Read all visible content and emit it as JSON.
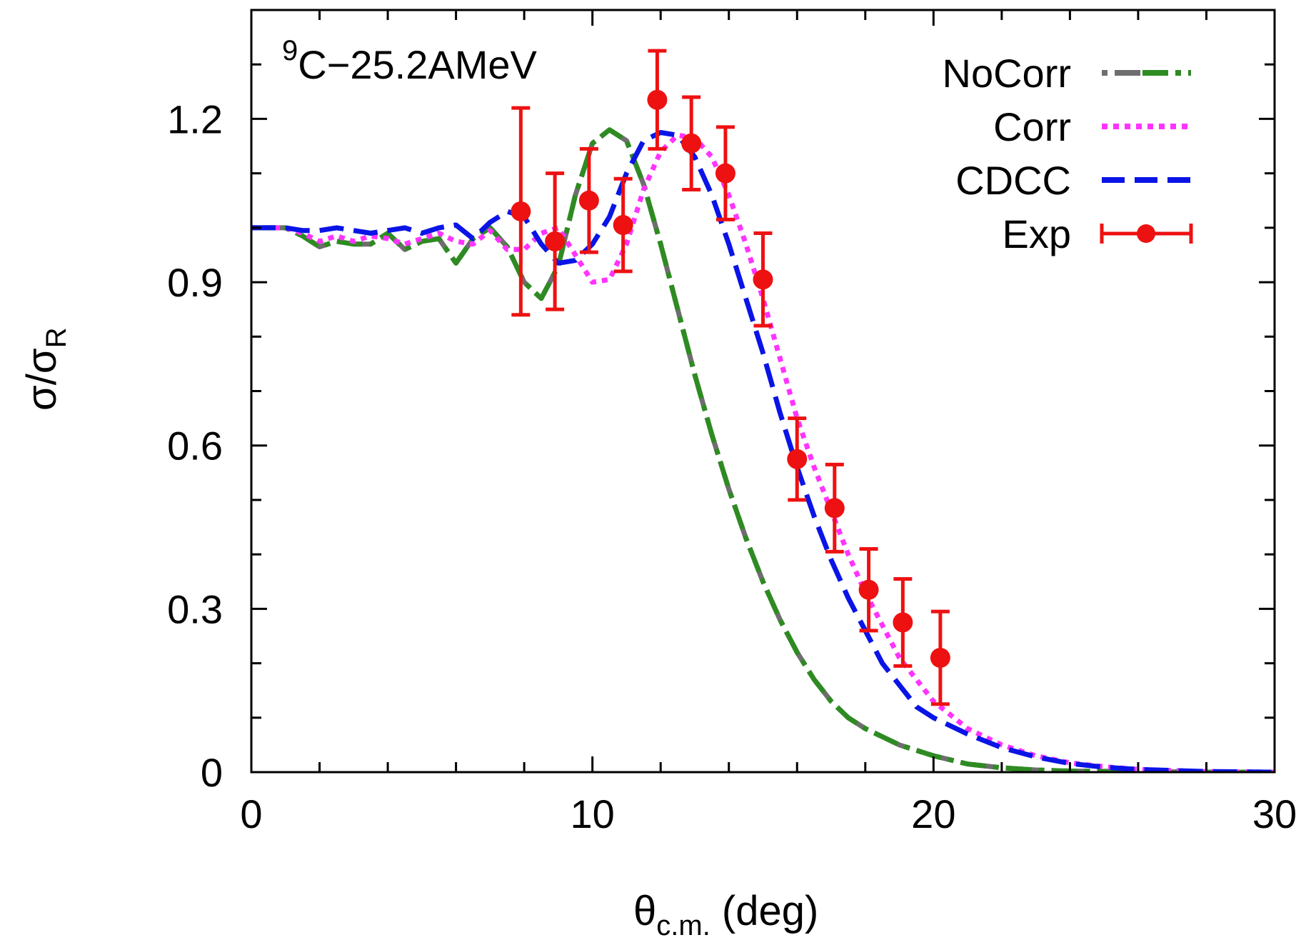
{
  "chart_data": {
    "type": "line",
    "title": {
      "sup": "9",
      "text": "C−25.2AMeV"
    },
    "xlabel": {
      "main": "θ",
      "sub": "c.m.",
      "rest": " (deg)"
    },
    "ylabel": {
      "main": "σ/σ",
      "sub": "R"
    },
    "xlim": [
      0,
      30
    ],
    "ylim": [
      0,
      1.4
    ],
    "x_ticks": [
      0,
      10,
      20,
      30
    ],
    "x_tick_labels": [
      "0",
      "10",
      "20",
      "30"
    ],
    "y_ticks": [
      0,
      0.3,
      0.6,
      0.9,
      1.2
    ],
    "y_tick_labels": [
      "0",
      "0.3",
      "0.6",
      "0.9",
      "1.2"
    ],
    "grid": false,
    "legend_position": "top-right",
    "series": [
      {
        "name": "NoCorr",
        "style": "dash-dot",
        "colors": [
          "#6e6e6e",
          "#2e8b22"
        ],
        "x": [
          0,
          1,
          1.5,
          2,
          2.5,
          3,
          3.5,
          4,
          4.5,
          5,
          5.5,
          6,
          6.5,
          7,
          7.5,
          8,
          8.5,
          9,
          9.5,
          10,
          10.5,
          11,
          11.5,
          12,
          12.5,
          13,
          13.5,
          14,
          14.5,
          15,
          15.5,
          16,
          16.5,
          17,
          17.5,
          18,
          19,
          20,
          21,
          22,
          23,
          24,
          26,
          28,
          30
        ],
        "y": [
          1.0,
          1.0,
          0.985,
          0.965,
          0.975,
          0.97,
          0.97,
          0.99,
          0.96,
          0.975,
          0.98,
          0.935,
          0.98,
          1.0,
          0.965,
          0.9,
          0.87,
          0.93,
          1.06,
          1.155,
          1.18,
          1.16,
          1.08,
          0.97,
          0.85,
          0.73,
          0.62,
          0.52,
          0.43,
          0.35,
          0.28,
          0.22,
          0.17,
          0.13,
          0.1,
          0.08,
          0.05,
          0.03,
          0.015,
          0.008,
          0.004,
          0.002,
          0.001,
          0.0,
          0.0
        ]
      },
      {
        "name": "Corr",
        "style": "dotted",
        "colors": [
          "#ff33ff"
        ],
        "x": [
          0,
          1,
          1.5,
          2,
          2.5,
          3,
          3.5,
          4,
          4.5,
          5,
          5.5,
          6,
          6.5,
          7,
          7.5,
          8,
          8.5,
          9,
          9.5,
          10,
          10.5,
          11,
          11.5,
          12,
          12.5,
          13,
          13.5,
          14,
          14.5,
          15,
          15.5,
          16,
          16.5,
          17,
          17.5,
          18,
          18.5,
          19,
          19.5,
          20,
          21,
          22,
          23,
          24,
          25,
          26,
          28,
          30
        ],
        "y": [
          1.0,
          1.0,
          0.99,
          0.975,
          0.985,
          0.975,
          0.985,
          0.98,
          0.97,
          0.98,
          0.99,
          0.975,
          0.97,
          0.995,
          0.96,
          0.96,
          0.99,
          1.0,
          0.95,
          0.9,
          0.905,
          0.97,
          1.07,
          1.14,
          1.17,
          1.165,
          1.13,
          1.06,
          0.97,
          0.87,
          0.76,
          0.65,
          0.56,
          0.48,
          0.4,
          0.33,
          0.27,
          0.21,
          0.17,
          0.13,
          0.08,
          0.05,
          0.03,
          0.017,
          0.01,
          0.005,
          0.001,
          0.0
        ]
      },
      {
        "name": "CDCC",
        "style": "dashed",
        "colors": [
          "#0a14e6"
        ],
        "x": [
          0,
          1,
          1.5,
          2,
          2.5,
          3,
          3.5,
          4,
          4.5,
          5,
          5.5,
          6,
          6.5,
          7,
          7.5,
          8,
          8.5,
          9,
          9.5,
          10,
          10.5,
          11,
          11.5,
          12,
          12.5,
          13,
          13.5,
          14,
          14.5,
          15,
          15.5,
          16,
          16.5,
          17,
          17.5,
          18,
          18.5,
          19,
          19.5,
          20,
          21,
          22,
          23,
          24,
          25,
          26,
          28,
          30
        ],
        "y": [
          1.0,
          1.0,
          0.995,
          0.995,
          1.0,
          0.995,
          0.99,
          0.995,
          1.0,
          0.99,
          1.0,
          1.005,
          0.98,
          1.01,
          1.03,
          1.02,
          0.97,
          0.935,
          0.94,
          0.97,
          1.02,
          1.1,
          1.16,
          1.175,
          1.17,
          1.13,
          1.06,
          0.97,
          0.87,
          0.77,
          0.66,
          0.56,
          0.47,
          0.39,
          0.32,
          0.26,
          0.2,
          0.16,
          0.12,
          0.1,
          0.07,
          0.045,
          0.028,
          0.016,
          0.009,
          0.005,
          0.001,
          0.0
        ]
      }
    ],
    "experimental": {
      "name": "Exp",
      "color": "#ee1111",
      "x": [
        7.9,
        8.9,
        9.9,
        10.9,
        11.9,
        12.9,
        13.9,
        15.0,
        16.0,
        17.1,
        18.1,
        19.1,
        20.2
      ],
      "y": [
        1.03,
        0.975,
        1.05,
        1.005,
        1.235,
        1.155,
        1.1,
        0.905,
        0.575,
        0.485,
        0.335,
        0.275,
        0.21
      ],
      "err": [
        0.19,
        0.125,
        0.095,
        0.085,
        0.09,
        0.085,
        0.085,
        0.085,
        0.075,
        0.08,
        0.075,
        0.08,
        0.085
      ]
    }
  }
}
